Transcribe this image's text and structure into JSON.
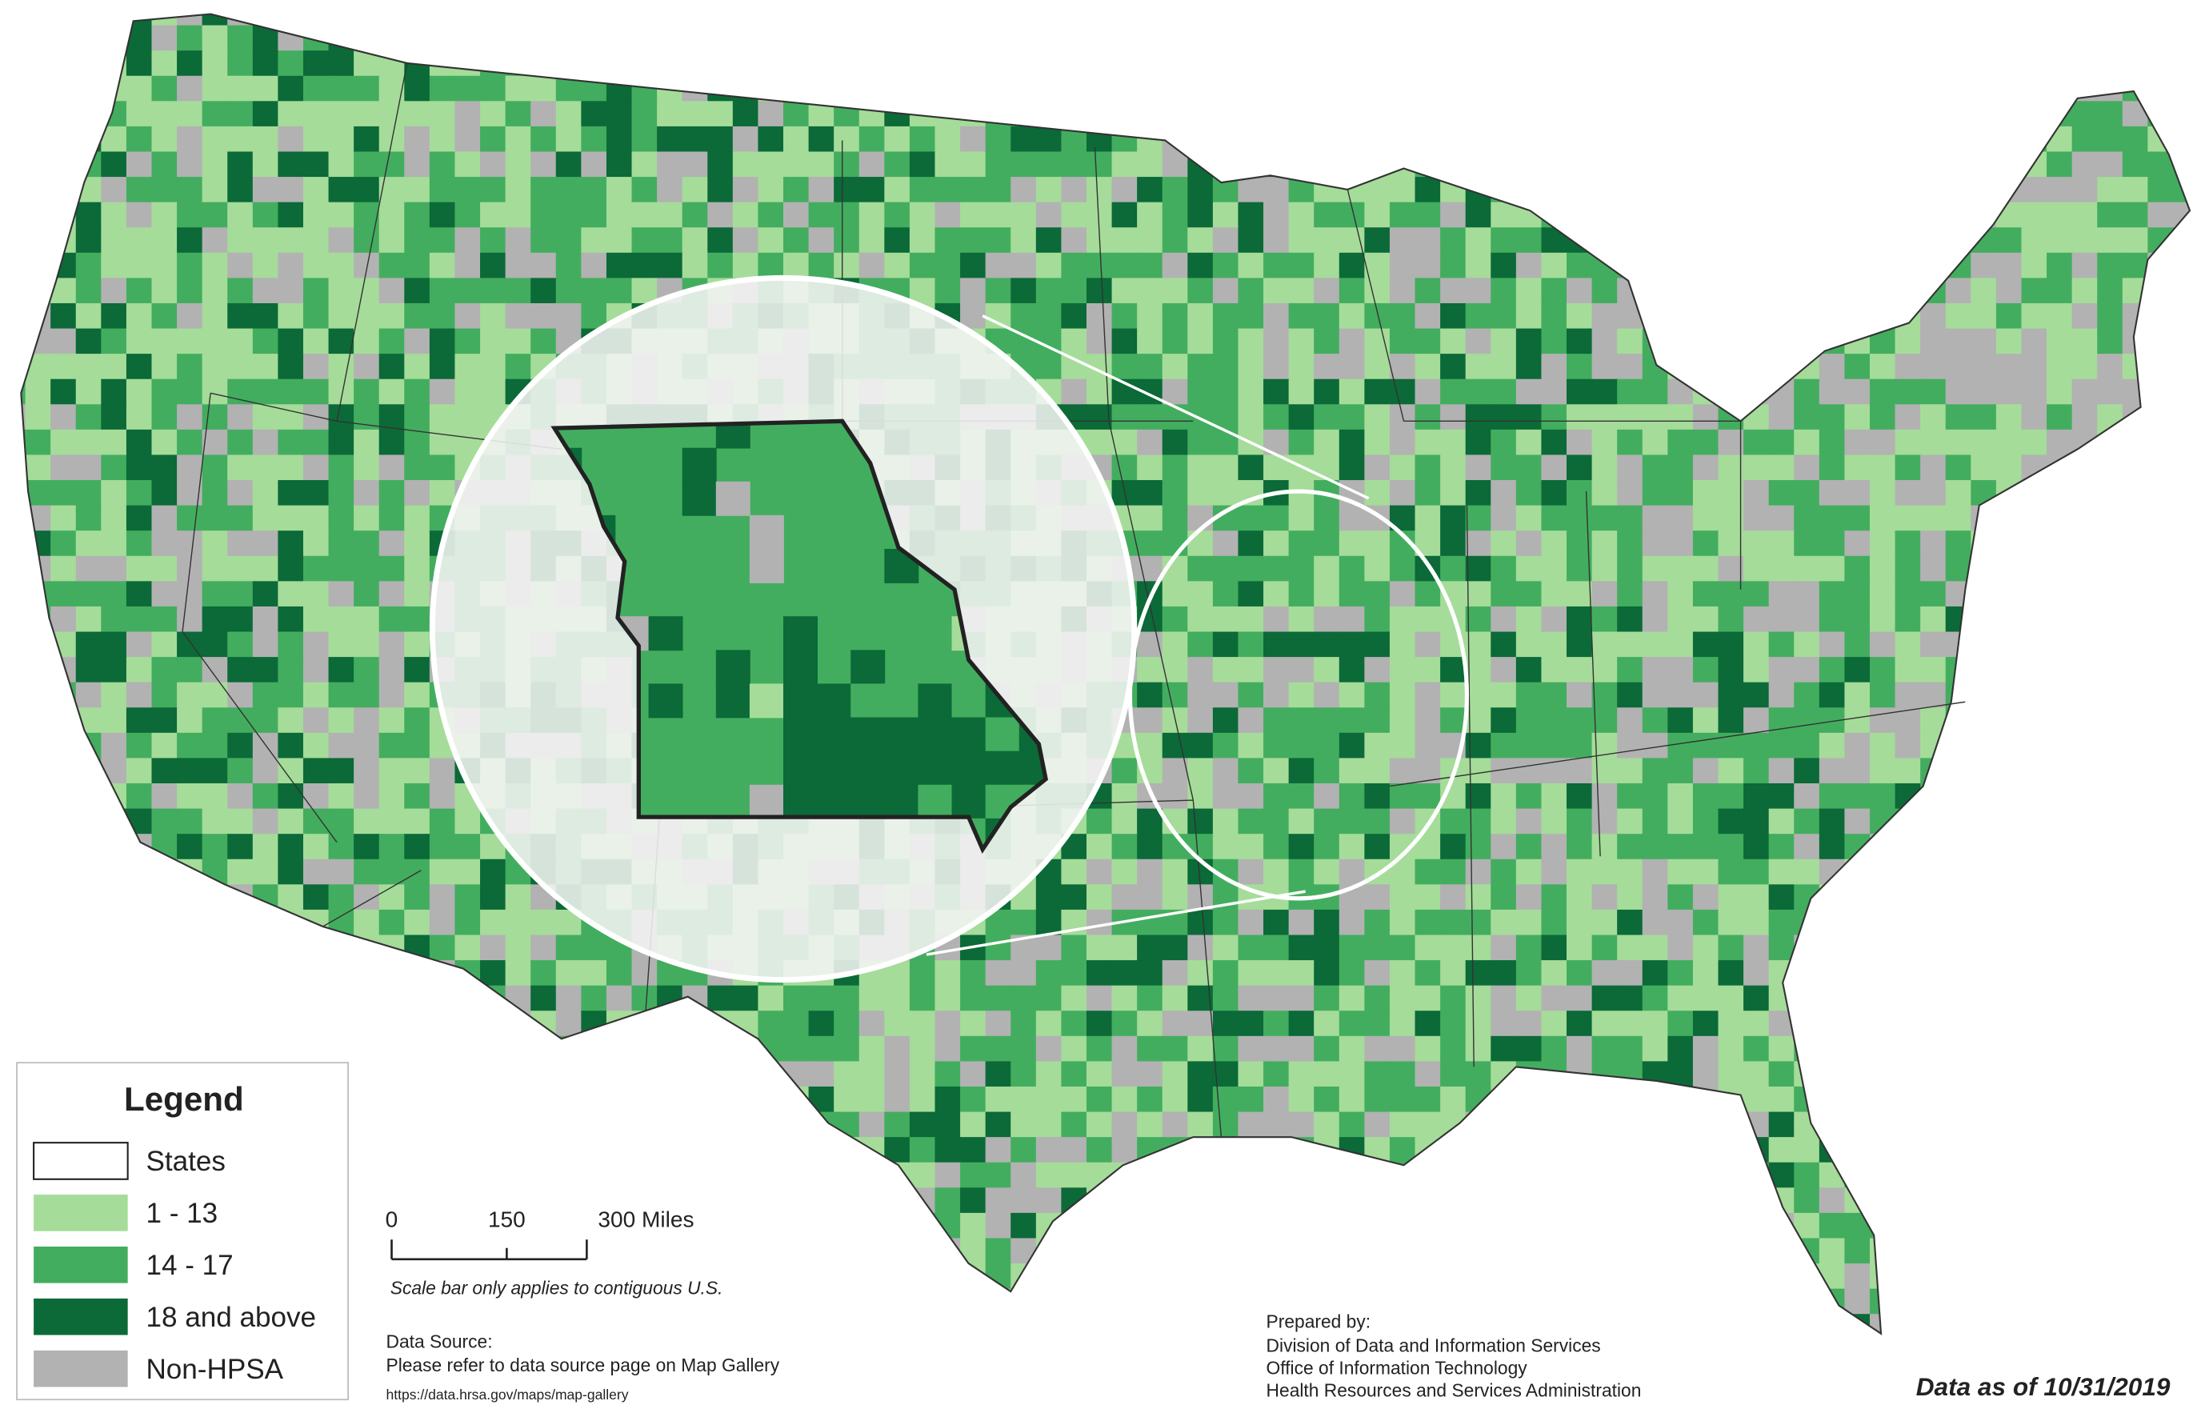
{
  "legend": {
    "title": "Legend",
    "items": [
      {
        "label": "States",
        "color": "#ffffff"
      },
      {
        "label": "1 - 13",
        "color": "#a5dc99"
      },
      {
        "label": "14 - 17",
        "color": "#43ad5f"
      },
      {
        "label": "18 and above",
        "color": "#0b6a37"
      },
      {
        "label": "Non-HPSA",
        "color": "#b2b2b2"
      }
    ]
  },
  "scale_bar": {
    "ticks": [
      "0",
      "150",
      "300 Miles"
    ],
    "note": "Scale bar only applies to contiguous U.S."
  },
  "data_source": {
    "heading": "Data Source:",
    "text": "Please refer to data source page on Map Gallery",
    "url": "https://data.hrsa.gov/maps/map-gallery"
  },
  "prepared_by": {
    "heading": "Prepared by:",
    "lines": [
      "Division of Data and Information Services",
      "Office of Information Technology",
      "Health Resources and Services Administration"
    ]
  },
  "date_note": "Data as of 10/31/2019"
}
